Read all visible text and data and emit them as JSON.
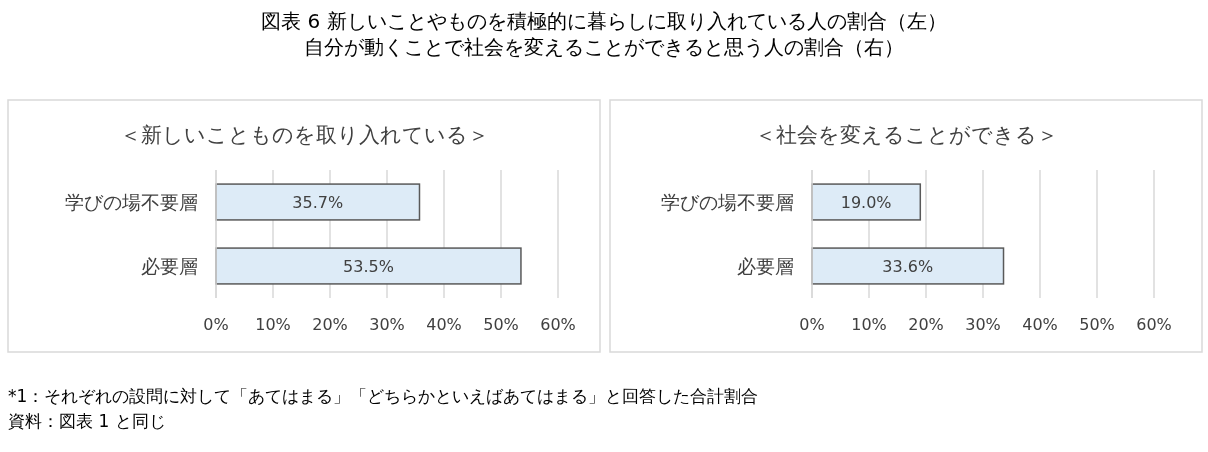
{
  "chart_data": [
    {
      "type": "bar",
      "orientation": "horizontal",
      "title": "＜新しいことものを取り入れている＞",
      "categories": [
        "学びの場不要層",
        "必要層"
      ],
      "values": [
        35.7,
        53.5
      ],
      "value_labels": [
        "35.7%",
        "53.5%"
      ],
      "color": "#ddebf7",
      "xlim": [
        0,
        60
      ],
      "xticks": [
        {
          "value": 0,
          "label": "0%"
        },
        {
          "value": 10,
          "label": "10%"
        },
        {
          "value": 20,
          "label": "20%"
        },
        {
          "value": 30,
          "label": "30%"
        },
        {
          "value": 40,
          "label": "40%"
        },
        {
          "value": 50,
          "label": "50%"
        },
        {
          "value": 60,
          "label": "60%"
        }
      ],
      "grid": "x",
      "annotations": [
        "図表 6  新しいことやものを積極的に暮らしに取り入れている人の割合（左）",
        "自分が動くことで社会を変えることができると思う人の割合（右）"
      ]
    },
    {
      "type": "bar",
      "orientation": "horizontal",
      "title": "＜社会を変えることができる＞",
      "categories": [
        "学びの場不要層",
        "必要層"
      ],
      "values": [
        19.0,
        33.6
      ],
      "value_labels": [
        "19.0%",
        "33.6%"
      ],
      "color": "#ddebf7",
      "xlim": [
        0,
        60
      ],
      "xticks": [
        {
          "value": 0,
          "label": "0%"
        },
        {
          "value": 10,
          "label": "10%"
        },
        {
          "value": 20,
          "label": "20%"
        },
        {
          "value": 30,
          "label": "30%"
        },
        {
          "value": 40,
          "label": "40%"
        },
        {
          "value": 50,
          "label": "50%"
        },
        {
          "value": 60,
          "label": "60%"
        }
      ],
      "grid": "x",
      "annotations": [
        "*1：それぞれの設問に対して「あてはまる」「どちらかといえばあてはまる」と回答した合計割合",
        "資料：図表 1 と同じ"
      ]
    }
  ]
}
